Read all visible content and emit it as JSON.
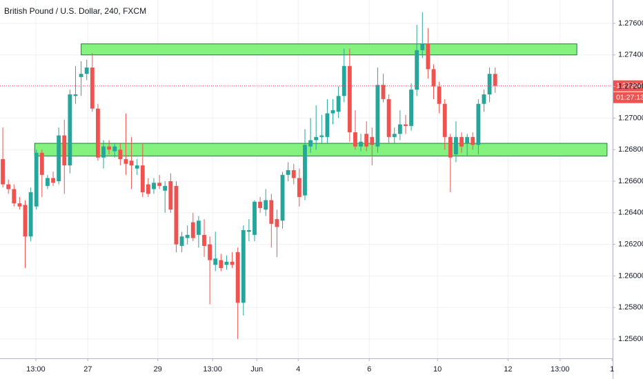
{
  "chart_data": {
    "type": "candlestick",
    "title": "British Pound / U.S. Dollar, 240, FXCM",
    "up_color": "#26a69a",
    "down_color": "#ef5350",
    "zone_color": "#84f27f",
    "grid": true,
    "open": [
      1.2674,
      1.2658,
      1.2655,
      1.2646,
      1.2645,
      1.2625,
      1.2644,
      1.2678,
      1.2657,
      1.2662,
      1.266,
      1.2689,
      1.267,
      1.2714,
      1.2726,
      1.2728,
      1.2732,
      1.2706,
      1.2675,
      1.2682,
      1.2679,
      1.268,
      1.2674,
      1.2673,
      1.2668,
      1.267,
      1.2658,
      1.2655,
      1.2659,
      1.2654,
      1.266,
      1.2657,
      1.2619,
      1.2624,
      1.2634,
      1.2626,
      1.2626,
      1.262,
      1.2607,
      1.261,
      1.2607,
      1.2609,
      1.2615,
      1.2583,
      1.2628,
      1.2626,
      1.2647,
      1.2642,
      1.2648,
      1.2636,
      1.2635,
      1.2664,
      1.2667,
      1.2662,
      1.2651,
      1.2682,
      1.2686,
      1.2688,
      1.2688,
      1.2703,
      1.2704,
      1.2714,
      1.2733,
      1.2691,
      1.2682,
      1.269,
      1.2688,
      1.2682,
      1.2721,
      1.2712,
      1.2688,
      1.269,
      1.2696,
      1.2695,
      1.2718,
      1.2743,
      1.2747,
      1.2731,
      1.272,
      1.2709,
      1.2688,
      1.2677,
      1.2688,
      1.2684,
      1.2688,
      1.2683,
      1.2709,
      1.2715,
      1.2728
    ],
    "high": [
      1.2694,
      1.2661,
      1.2658,
      1.265,
      1.2648,
      1.2656,
      1.268,
      1.268,
      1.2664,
      1.2666,
      1.2694,
      1.2699,
      1.2718,
      1.2733,
      1.2736,
      1.2737,
      1.2741,
      1.2709,
      1.2686,
      1.2686,
      1.2684,
      1.2684,
      1.2703,
      1.2688,
      1.2674,
      1.2684,
      1.2662,
      1.2662,
      1.2664,
      1.266,
      1.2665,
      1.266,
      1.2628,
      1.2632,
      1.264,
      1.2638,
      1.2636,
      1.2625,
      1.2628,
      1.2614,
      1.2613,
      1.2615,
      1.2618,
      1.2632,
      1.2636,
      1.2648,
      1.265,
      1.2655,
      1.2652,
      1.2642,
      1.2666,
      1.2672,
      1.2671,
      1.2668,
      1.2693,
      1.27,
      1.2708,
      1.2702,
      1.2712,
      1.2712,
      1.272,
      1.2744,
      1.2744,
      1.2705,
      1.269,
      1.2698,
      1.2694,
      1.2732,
      1.2728,
      1.2715,
      1.2694,
      1.2705,
      1.2702,
      1.2722,
      1.2759,
      1.2767,
      1.2757,
      1.2734,
      1.2723,
      1.2712,
      1.269,
      1.2698,
      1.2691,
      1.269,
      1.2691,
      1.2712,
      1.2718,
      1.2732,
      1.2732
    ],
    "low": [
      1.2656,
      1.2652,
      1.2644,
      1.2642,
      1.2605,
      1.2622,
      1.2642,
      1.265,
      1.2655,
      1.2657,
      1.2658,
      1.2652,
      1.2665,
      1.2709,
      1.2714,
      1.2724,
      1.2704,
      1.2673,
      1.2668,
      1.2677,
      1.2675,
      1.267,
      1.2664,
      1.2655,
      1.2664,
      1.265,
      1.265,
      1.2652,
      1.2655,
      1.264,
      1.264,
      1.2615,
      1.2615,
      1.262,
      1.2622,
      1.2618,
      1.2612,
      1.2582,
      1.2603,
      1.2603,
      1.2604,
      1.2605,
      1.256,
      1.2575,
      1.2622,
      1.2622,
      1.264,
      1.2638,
      1.2618,
      1.2612,
      1.263,
      1.266,
      1.2658,
      1.2644,
      1.2648,
      1.2678,
      1.268,
      1.2684,
      1.2684,
      1.2696,
      1.27,
      1.271,
      1.2685,
      1.268,
      1.2679,
      1.2679,
      1.267,
      1.2678,
      1.271,
      1.2684,
      1.2684,
      1.2686,
      1.269,
      1.2692,
      1.2714,
      1.2738,
      1.2725,
      1.2712,
      1.2703,
      1.268,
      1.2653,
      1.2672,
      1.2678,
      1.2676,
      1.268,
      1.2677,
      1.2704,
      1.271,
      1.2716
    ],
    "close": [
      1.2658,
      1.2655,
      1.2646,
      1.2644,
      1.2625,
      1.2653,
      1.2678,
      1.2664,
      1.2662,
      1.2659,
      1.2689,
      1.267,
      1.2715,
      1.2715,
      1.2728,
      1.2732,
      1.2706,
      1.2675,
      1.2682,
      1.268,
      1.2682,
      1.2674,
      1.2671,
      1.267,
      1.267,
      1.2653,
      1.2652,
      1.2659,
      1.2657,
      1.2657,
      1.2642,
      1.262,
      1.2625,
      1.2626,
      1.2624,
      1.2635,
      1.2619,
      1.261,
      1.2611,
      1.2605,
      1.2609,
      1.2607,
      1.2583,
      1.2629,
      1.2629,
      1.2647,
      1.2643,
      1.2648,
      1.2633,
      1.2631,
      1.2664,
      1.2667,
      1.2662,
      1.265,
      1.2683,
      1.2686,
      1.2688,
      1.2689,
      1.2703,
      1.2705,
      1.2714,
      1.2733,
      1.2691,
      1.2682,
      1.2685,
      1.2682,
      1.2683,
      1.2721,
      1.2712,
      1.2688,
      1.269,
      1.2696,
      1.2695,
      1.2718,
      1.2743,
      1.2747,
      1.2731,
      1.272,
      1.2709,
      1.2688,
      1.2675,
      1.2688,
      1.2682,
      1.2688,
      1.2683,
      1.2709,
      1.2715,
      1.2728,
      1.27204
    ],
    "current_price": 1.27204,
    "countdown": "01:27:13",
    "zones": [
      {
        "x": [
          14,
          102.6
        ],
        "y": [
          1.274,
          1.2747
        ]
      },
      {
        "x": [
          5.7,
          108
        ],
        "y": [
          1.2676,
          1.2684
        ]
      }
    ],
    "xlim": [
      -0.5,
      109
    ],
    "xticks": [
      {
        "value": 5.9,
        "label": "13:00"
      },
      {
        "value": 15.2,
        "label": "27"
      },
      {
        "value": 27.7,
        "label": "29"
      },
      {
        "value": 37.5,
        "label": "13:00"
      },
      {
        "value": 45.4,
        "label": "Jun"
      },
      {
        "value": 52.8,
        "label": "4"
      },
      {
        "value": 65.5,
        "label": "6"
      },
      {
        "value": 77.7,
        "label": "10"
      },
      {
        "value": 90.3,
        "label": "12"
      },
      {
        "value": 99.6,
        "label": "13:00"
      },
      {
        "value": 108.9,
        "label": "1"
      }
    ],
    "ylim": [
      1.25478,
      1.27748
    ],
    "yticks": [
      {
        "value": 1.256,
        "label": "1.25600"
      },
      {
        "value": 1.258,
        "label": "1.25800"
      },
      {
        "value": 1.26,
        "label": "1.26000"
      },
      {
        "value": 1.262,
        "label": "1.26200"
      },
      {
        "value": 1.264,
        "label": "1.26400"
      },
      {
        "value": 1.266,
        "label": "1.26600"
      },
      {
        "value": 1.268,
        "label": "1.26800"
      },
      {
        "value": 1.27,
        "label": "1.27000"
      },
      {
        "value": 1.272,
        "label": "1.27200"
      },
      {
        "value": 1.274,
        "label": "1.27400"
      },
      {
        "value": 1.276,
        "label": "1.27600"
      }
    ]
  }
}
